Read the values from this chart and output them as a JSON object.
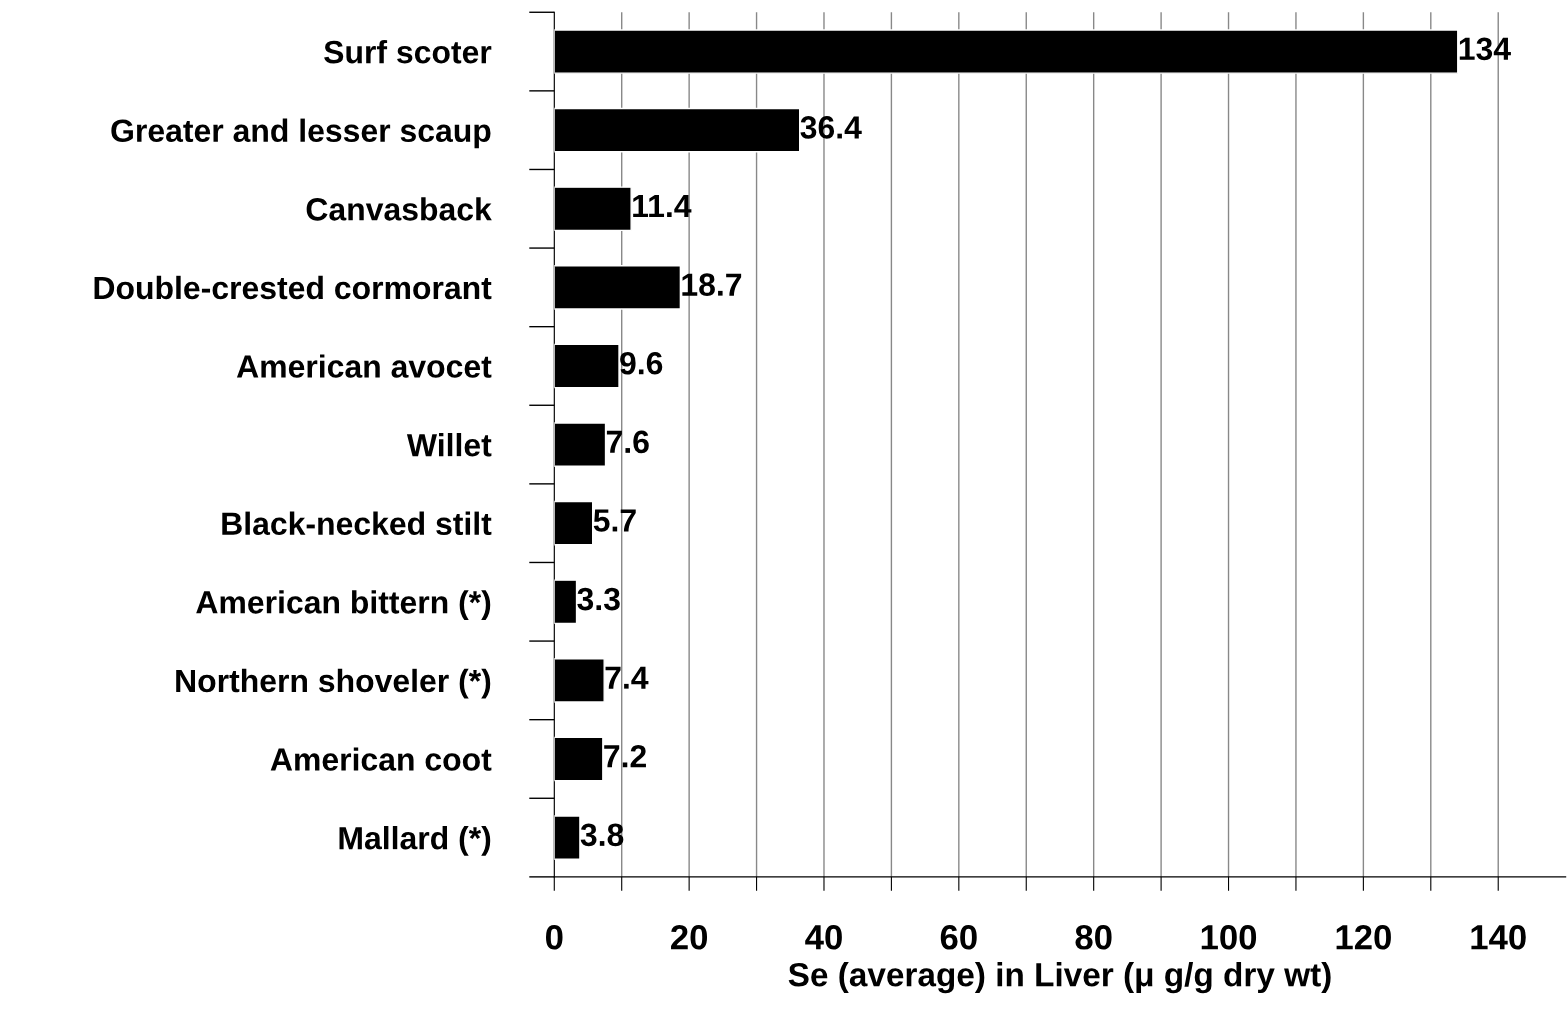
{
  "chart_data": {
    "type": "bar",
    "orientation": "horizontal",
    "xlabel": "Se (average) in Liver (μ g/g dry wt)",
    "categories": [
      "Surf scoter",
      "Greater and lesser scaup",
      "Canvasback",
      "Double-crested cormorant",
      "American avocet",
      "Willet",
      "Black-necked stilt",
      "American bittern (*)",
      "Northern shoveler (*)",
      "American coot",
      "Mallard (*)"
    ],
    "values": [
      134,
      36.4,
      11.4,
      18.7,
      9.6,
      7.6,
      5.7,
      3.3,
      7.4,
      7.2,
      3.8
    ],
    "color": "#000000",
    "data_labels": true,
    "grid": "x",
    "legend": false,
    "xlim": [
      0,
      150
    ],
    "xticks": [
      0,
      {
        "value": 10,
        "label": null
      },
      20,
      {
        "value": 30,
        "label": null
      },
      40,
      {
        "value": 50,
        "label": null
      },
      60,
      {
        "value": 70,
        "label": null
      },
      80,
      {
        "value": 90,
        "label": null
      },
      100,
      {
        "value": 110,
        "label": null
      },
      120,
      {
        "value": 130,
        "label": null
      },
      140
    ]
  }
}
